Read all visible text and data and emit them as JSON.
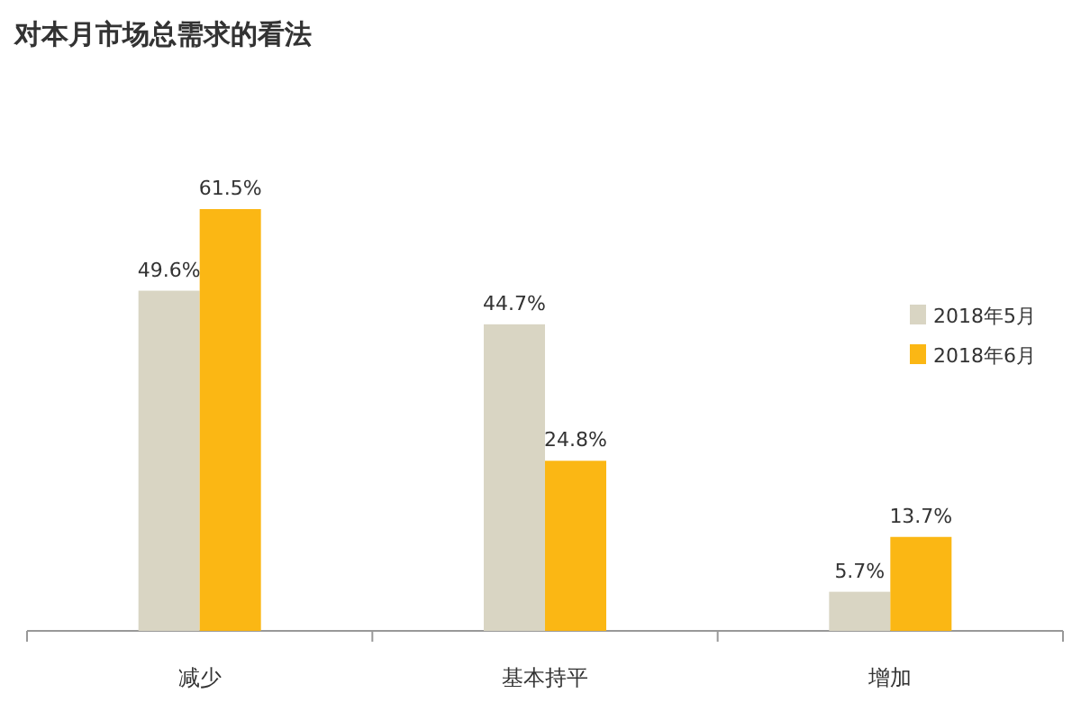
{
  "chart_data": {
    "type": "bar",
    "title": "对本月市场总需求的看法",
    "categories": [
      "减少",
      "基本持平",
      "增加"
    ],
    "series": [
      {
        "name": "2018年5月",
        "color": "#d9d5c3",
        "values": [
          49.6,
          44.7,
          5.7
        ],
        "value_labels": [
          "49.6%",
          "44.7%",
          "5.7%"
        ]
      },
      {
        "name": "2018年6月",
        "color": "#fbb714",
        "values": [
          61.5,
          24.8,
          13.7
        ],
        "value_labels": [
          "61.5%",
          "24.8%",
          "13.7%"
        ]
      }
    ],
    "legend": "right"
  }
}
